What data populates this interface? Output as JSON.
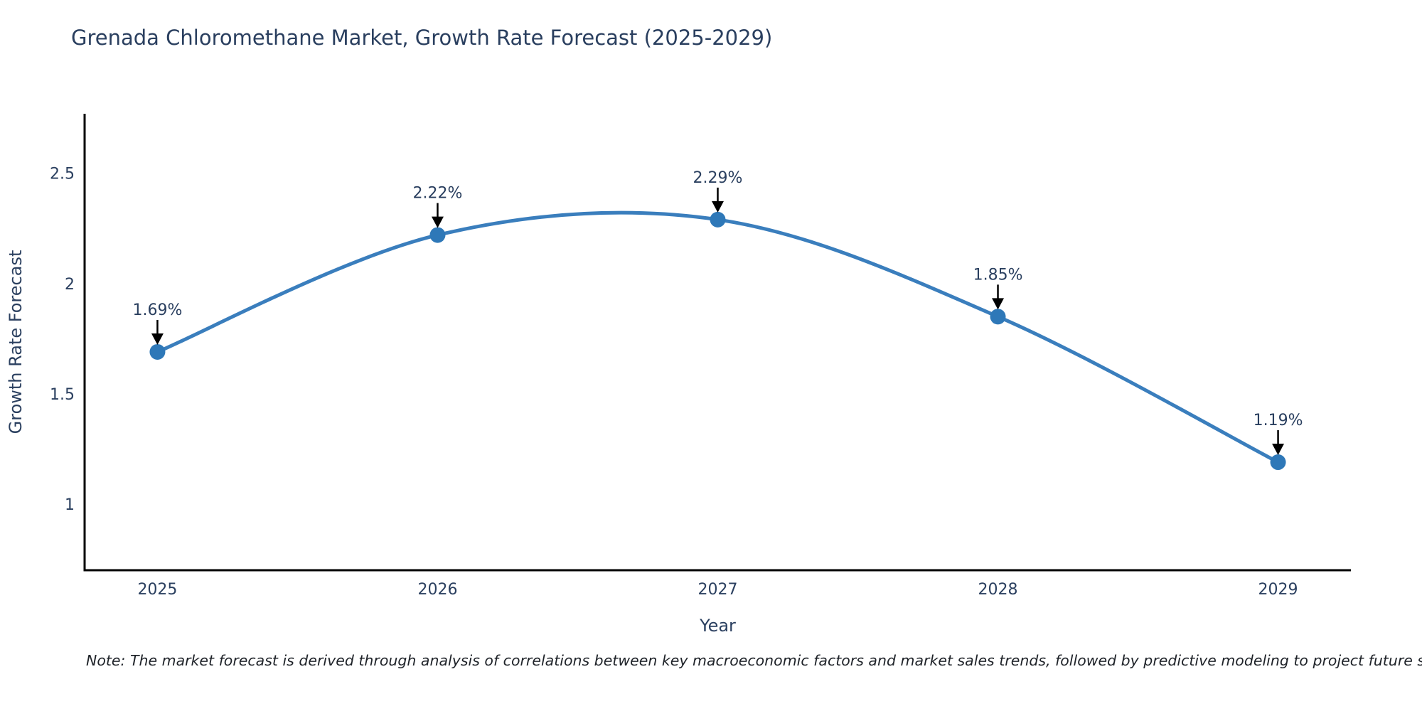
{
  "chart_data": {
    "type": "line",
    "title": "Grenada Chloromethane Market, Growth Rate Forecast (2025-2029)",
    "xlabel": "Year",
    "ylabel": "Growth Rate Forecast",
    "x": [
      2025,
      2026,
      2027,
      2028,
      2029
    ],
    "series": [
      {
        "name": "Growth Rate Forecast",
        "values": [
          1.69,
          2.22,
          2.29,
          1.85,
          1.19
        ],
        "point_labels": [
          "1.69%",
          "2.22%",
          "2.29%",
          "1.85%",
          "1.19%"
        ]
      }
    ],
    "x_tick_labels": [
      "2025",
      "2026",
      "2027",
      "2028",
      "2029"
    ],
    "y_ticks": [
      1,
      1.5,
      2,
      2.5
    ],
    "y_tick_labels": [
      "1",
      "1.5",
      "2",
      "2.5"
    ],
    "xlim": [
      2024.74,
      2029.26
    ],
    "ylim": [
      0.7,
      2.77
    ],
    "grid": false,
    "legend": false,
    "line_shape": "spline",
    "annotations_have_arrows": true,
    "colors": {
      "line": "#3a7ebd",
      "marker": "#2e78b8",
      "axis": "#000000",
      "text": "#2a3f5f",
      "annotation_text": "#2a3f5f",
      "arrow": "#000000",
      "note_text": "#1f2329",
      "background": "#ffffff"
    },
    "note": "Note: The market forecast is derived through analysis of correlations between key macroeconomic factors and market sales trends, followed by predictive modeling to project future sales"
  }
}
